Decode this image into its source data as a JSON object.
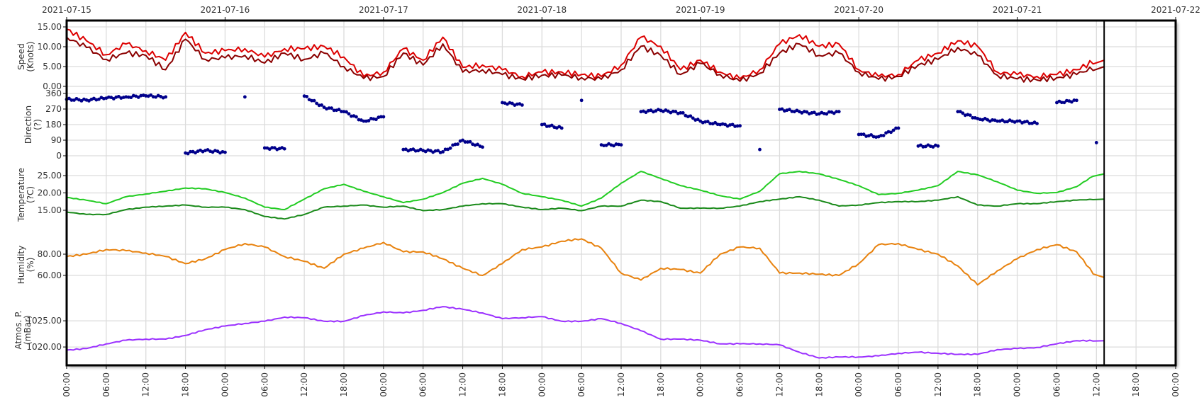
{
  "chart_data": {
    "type": "line",
    "x_start": "2021-07-15 00:00",
    "x_end": "2021-07-22 00:00",
    "x_sample_step_hours": 3,
    "date_labels": [
      "2021-07-15",
      "2021-07-16",
      "2021-07-17",
      "2021-07-18",
      "2021-07-19",
      "2021-07-20",
      "2021-07-21",
      "2021-07-22"
    ],
    "hour_labels": [
      "00:00",
      "06:00",
      "12:00",
      "18:00"
    ],
    "current_time_marker": "2021-07-21 13:10",
    "grid": true,
    "panels": [
      {
        "id": "speed",
        "ylabel": [
          "Speed",
          "(Knots)"
        ],
        "ylim": [
          0,
          15
        ],
        "ticks": [
          "0.00",
          "5.00",
          "10.00",
          "15.00"
        ],
        "tick_values": [
          0,
          5,
          10,
          15
        ],
        "series": [
          {
            "color": "#dd0000",
            "kind": "line",
            "values": [
              14.4,
              11.5,
              8,
              10.7,
              9,
              6.6,
              13.6,
              8.4,
              9,
              9.5,
              7.4,
              9.5,
              9.5,
              10.1,
              7.4,
              2.5,
              3.6,
              9.5,
              6.6,
              12.4,
              4.8,
              5.4,
              4.2,
              2.5,
              3.6,
              3.6,
              3,
              2.5,
              5.4,
              12.4,
              10.1,
              4.2,
              6.6,
              3.6,
              1.9,
              4.2,
              10.7,
              13,
              10.1,
              10.7,
              4.2,
              2.5,
              3,
              6.6,
              8.4,
              11.5,
              10.1,
              3.6,
              3,
              2.5,
              3,
              4.2,
              6.6
            ]
          },
          {
            "color": "#8b0000",
            "kind": "line",
            "values": [
              12.4,
              9.8,
              6.8,
              8.4,
              7.8,
              4.2,
              11.9,
              6.8,
              7.2,
              7.8,
              5.9,
              8.4,
              6.8,
              8.4,
              5,
              2,
              2.5,
              8.4,
              5.4,
              10.7,
              3.6,
              4.2,
              3,
              1.9,
              2.8,
              2.8,
              2.2,
              1.8,
              4.2,
              10.1,
              7.8,
              3,
              5.8,
              3,
              1.3,
              3.3,
              8.4,
              10.7,
              7.8,
              8.4,
              3.6,
              1.8,
              2.5,
              5.4,
              6.8,
              9.8,
              7.8,
              2.8,
              1.9,
              1.6,
              2.2,
              3,
              5
            ]
          }
        ]
      },
      {
        "id": "direction",
        "ylabel": [
          "Direction",
          "(?)"
        ],
        "ylim": [
          0,
          360
        ],
        "ticks": [
          "0",
          "90",
          "180",
          "270",
          "360"
        ],
        "tick_values": [
          0,
          90,
          180,
          270,
          360
        ],
        "series": [
          {
            "color": "#00008b",
            "kind": "scatter",
            "values": [
              326,
              322,
              333,
              340,
              346,
              340,
              16,
              30,
              20,
              340,
              45,
              40,
              345,
              280,
              255,
              200,
              225,
              36,
              30,
              23,
              90,
              50,
              307,
              293,
              180,
              160,
              320,
              63,
              63,
              255,
              262,
              248,
              200,
              180,
              173,
              36,
              268,
              255,
              242,
              255,
              123,
              110,
              160,
              56,
              56,
              255,
              215,
              200,
              200,
              186,
              307,
              320,
              76
            ]
          }
        ]
      },
      {
        "id": "temperature",
        "ylabel": [
          "Temperature",
          "(?C)"
        ],
        "ylim": [
          12,
          27
        ],
        "ticks": [
          "15.00",
          "20.00",
          "25.00"
        ],
        "tick_values": [
          15,
          20,
          25
        ],
        "series": [
          {
            "color": "#22cc22",
            "kind": "line",
            "values": [
              18.7,
              17.9,
              16.9,
              18.9,
              19.7,
              20.5,
              21.4,
              21.2,
              20.1,
              18.5,
              15.9,
              15.2,
              18.2,
              21.2,
              22.5,
              20.5,
              18.9,
              17.2,
              18.2,
              20.1,
              22.8,
              24.2,
              22.5,
              19.9,
              18.9,
              17.9,
              16.2,
              18.5,
              22.8,
              26.2,
              24.2,
              22.1,
              20.8,
              19.2,
              18.2,
              20.5,
              25.5,
              26.2,
              25.5,
              23.9,
              22.1,
              19.5,
              19.9,
              20.8,
              22.1,
              26.2,
              25.2,
              23.2,
              20.8,
              19.9,
              20.1,
              21.8,
              25.5
            ]
          },
          {
            "color": "#1a8a1a",
            "kind": "line",
            "values": [
              14.5,
              13.8,
              13.8,
              15.2,
              15.9,
              16.2,
              16.5,
              15.9,
              15.9,
              15.2,
              13.2,
              12.5,
              13.8,
              15.9,
              16.2,
              16.5,
              15.9,
              16.2,
              14.9,
              15.2,
              16.2,
              16.9,
              16.9,
              15.9,
              15.2,
              15.6,
              14.9,
              16.2,
              16.2,
              17.9,
              17.5,
              15.6,
              15.6,
              15.6,
              16.2,
              17.5,
              18.2,
              18.9,
              17.9,
              16.2,
              16.5,
              17.2,
              17.5,
              17.5,
              17.9,
              18.9,
              16.5,
              16.2,
              16.9,
              16.9,
              17.5,
              17.9,
              18.2
            ]
          }
        ]
      },
      {
        "id": "humidity",
        "ylabel": [
          "Humidity",
          "(%)"
        ],
        "ylim": [
          40,
          100
        ],
        "ticks": [
          "60.00",
          "80.00"
        ],
        "tick_values": [
          60,
          80
        ],
        "series": [
          {
            "color": "#e8820e",
            "kind": "line",
            "values": [
              77.8,
              80,
              84.4,
              83.3,
              81.1,
              77.8,
              71.1,
              75.6,
              84.4,
              90,
              86.7,
              77.8,
              73.3,
              66.7,
              80,
              85.6,
              91.1,
              82.2,
              82.2,
              75.6,
              66.7,
              60,
              71.1,
              84.4,
              86.7,
              92.2,
              94.4,
              85.6,
              62.2,
              55.6,
              66.7,
              65.6,
              62.2,
              80,
              86.7,
              85.6,
              62.2,
              62.2,
              61.1,
              60,
              71.1,
              88.9,
              90,
              84.4,
              80,
              68.9,
              51.1,
              64.4,
              75.6,
              84.4,
              88.9,
              82.2,
              58
            ]
          }
        ]
      },
      {
        "id": "pressure",
        "ylabel": [
          "Atmos. P.",
          "(mBar)"
        ],
        "ylim": [
          1016.5,
          1030
        ],
        "ticks": [
          "1020.00",
          "1025.00"
        ],
        "tick_values": [
          1020,
          1025
        ],
        "series": [
          {
            "color": "#9b30ff",
            "kind": "line",
            "values": [
              1019.4,
              1019.7,
              1020.6,
              1021.3,
              1021.5,
              1021.5,
              1022.2,
              1023.3,
              1024,
              1024.5,
              1024.9,
              1025.7,
              1025.6,
              1024.9,
              1024.9,
              1026,
              1026.7,
              1026.5,
              1027,
              1027.7,
              1027.2,
              1026.5,
              1025.4,
              1025.6,
              1025.8,
              1024.9,
              1024.9,
              1025.4,
              1024.5,
              1023.1,
              1021.5,
              1021.5,
              1021.3,
              1020.6,
              1020.6,
              1020.6,
              1020.4,
              1019,
              1017.9,
              1018.1,
              1018.1,
              1018.3,
              1018.8,
              1019,
              1018.8,
              1018.6,
              1018.6,
              1019.5,
              1019.7,
              1019.9,
              1020.6,
              1021.2,
              1021.2
            ]
          }
        ]
      }
    ]
  }
}
